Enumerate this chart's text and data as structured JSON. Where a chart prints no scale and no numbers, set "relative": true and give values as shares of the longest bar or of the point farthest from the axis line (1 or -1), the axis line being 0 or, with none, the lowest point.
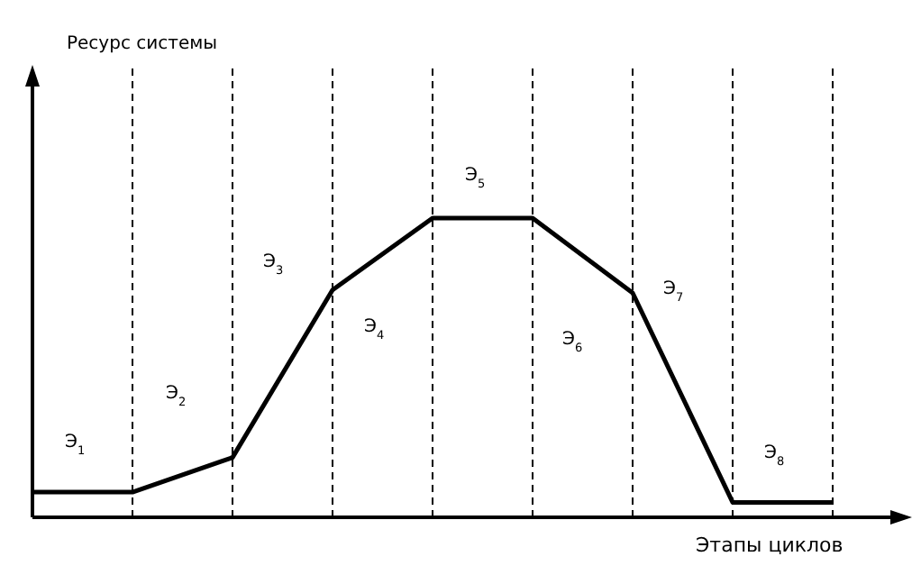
{
  "chart_data": {
    "type": "line",
    "relative": true,
    "xlabel": "Этапы циклов",
    "categories": [
      null,
      null,
      null,
      null,
      null,
      null,
      null,
      null,
      null
    ],
    "series": [
      {
        "color": "#000000",
        "values": [
          0.084,
          0.084,
          0.2,
          0.76,
          1,
          1,
          0.75,
          0.05,
          0.05
        ]
      }
    ],
    "grid": "x",
    "marker": "none",
    "line_style": "solid",
    "annotations": [
      "Ресурс системы",
      "Э$_{1}$",
      "Э$_{2}$",
      "Э$_{3}$",
      "Э$_{4}$",
      "Э$_{5}$",
      "Э$_{6}$",
      "Э$_{7}$",
      "Э$_{8}$"
    ]
  }
}
